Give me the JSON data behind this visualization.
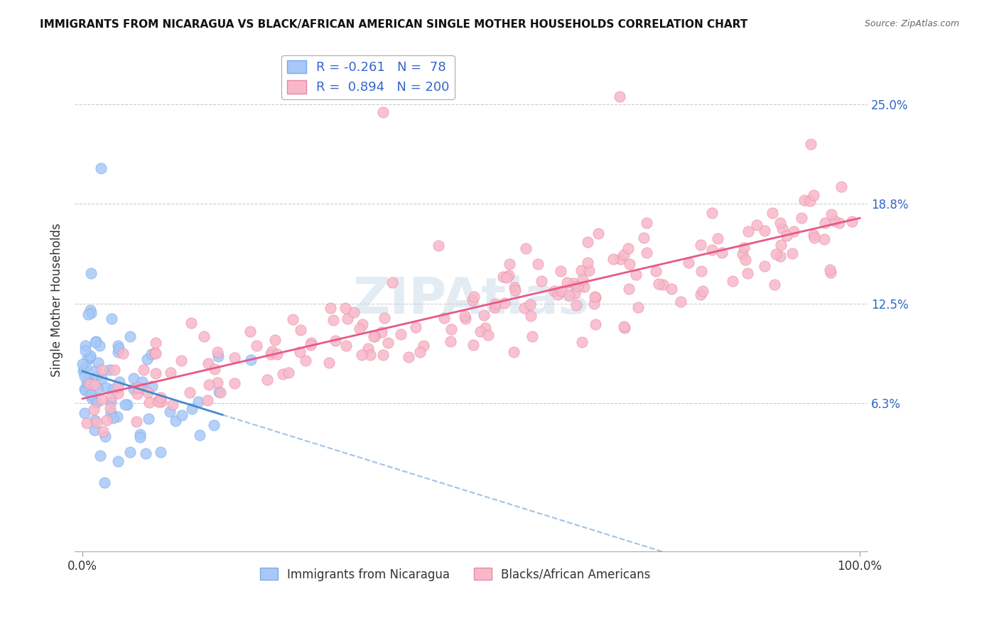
{
  "title": "IMMIGRANTS FROM NICARAGUA VS BLACK/AFRICAN AMERICAN SINGLE MOTHER HOUSEHOLDS CORRELATION CHART",
  "source": "Source: ZipAtlas.com",
  "ylabel": "Single Mother Households",
  "watermark": "ZIPAtlas",
  "series1": {
    "label": "Immigrants from Nicaragua",
    "R": -0.261,
    "N": 78,
    "color": "#a8c8f8",
    "edge_color": "#7aaae8",
    "line_color": "#4488cc"
  },
  "series2": {
    "label": "Blacks/African Americans",
    "R": 0.894,
    "N": 200,
    "color": "#f8b8c8",
    "edge_color": "#e888a8",
    "line_color": "#e85888"
  },
  "x_min": 0.0,
  "x_max": 1.0,
  "y_min": -0.03,
  "y_max": 0.285,
  "y_ticks": [
    0.063,
    0.125,
    0.188,
    0.25
  ],
  "y_tick_labels": [
    "6.3%",
    "12.5%",
    "18.8%",
    "25.0%"
  ],
  "background_color": "#ffffff",
  "title_fontsize": 11,
  "legend_color": "#3366cc",
  "grid_color": "#cccccc",
  "grid_style": "--"
}
